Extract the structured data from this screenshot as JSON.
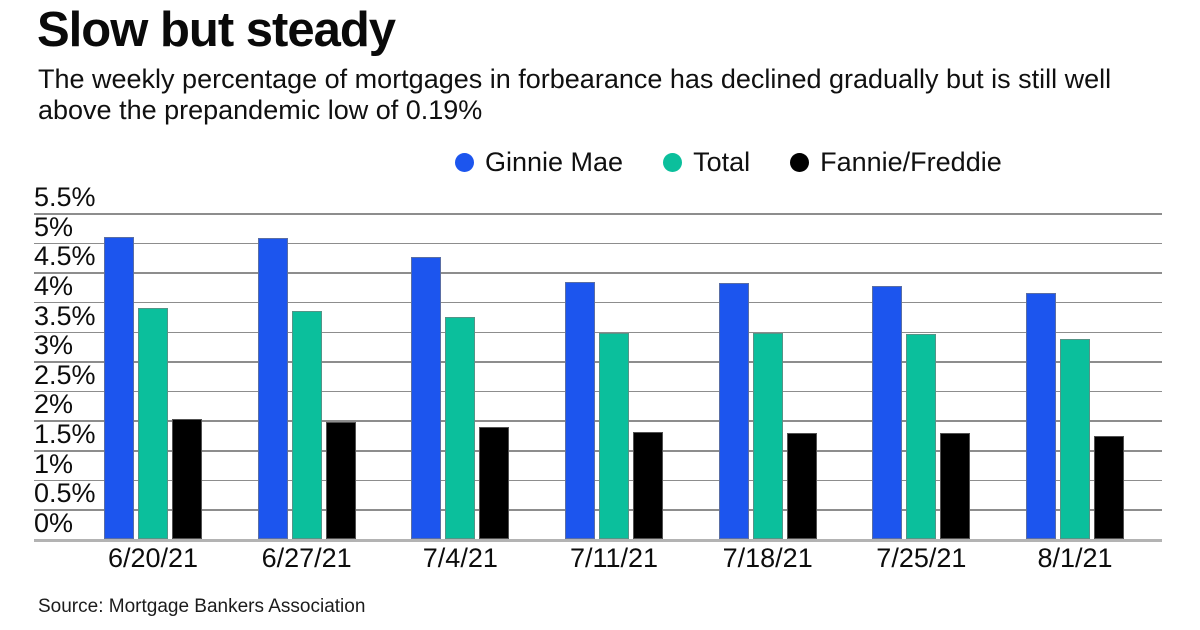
{
  "header": {
    "title": "Slow but steady",
    "subtitle": "The weekly percentage of mortgages in forbearance has declined gradually but is still well above the prepandemic low of 0.19%"
  },
  "chart_data": {
    "type": "bar",
    "title": "Slow but steady",
    "categories": [
      "6/20/21",
      "6/27/21",
      "7/4/21",
      "7/11/21",
      "7/18/21",
      "7/25/21",
      "8/1/21"
    ],
    "series": [
      {
        "name": "Ginnie Mae",
        "color": "#1c55ee",
        "values": [
          5.1,
          5.07,
          4.76,
          4.34,
          4.32,
          4.27,
          4.15
        ]
      },
      {
        "name": "Total",
        "color": "#0bbf9c",
        "values": [
          3.9,
          3.85,
          3.75,
          3.48,
          3.47,
          3.46,
          3.38
        ]
      },
      {
        "name": "Fannie/Freddie",
        "color": "#000000",
        "values": [
          2.02,
          1.97,
          1.89,
          1.8,
          1.79,
          1.79,
          1.74
        ]
      }
    ],
    "y_ticks": [
      {
        "value": 0,
        "label": "0%"
      },
      {
        "value": 0.5,
        "label": "0.5%"
      },
      {
        "value": 1,
        "label": "1%"
      },
      {
        "value": 1.5,
        "label": "1.5%"
      },
      {
        "value": 2,
        "label": "2%"
      },
      {
        "value": 2.5,
        "label": "2.5%"
      },
      {
        "value": 3,
        "label": "3%"
      },
      {
        "value": 3.5,
        "label": "3.5%"
      },
      {
        "value": 4,
        "label": "4%"
      },
      {
        "value": 4.5,
        "label": "4.5%"
      },
      {
        "value": 5,
        "label": "5%"
      },
      {
        "value": 5.5,
        "label": "5.5%"
      }
    ],
    "ylim": [
      0,
      5.5
    ],
    "xlabel": "",
    "ylabel": "",
    "grid": true,
    "legend_position": "top",
    "colors": {
      "gridline": "#8d8d8d",
      "baseline": "#b3b3b3",
      "axis_text": "#0d0d0d"
    }
  },
  "source": "Source: Mortgage Bankers Association"
}
